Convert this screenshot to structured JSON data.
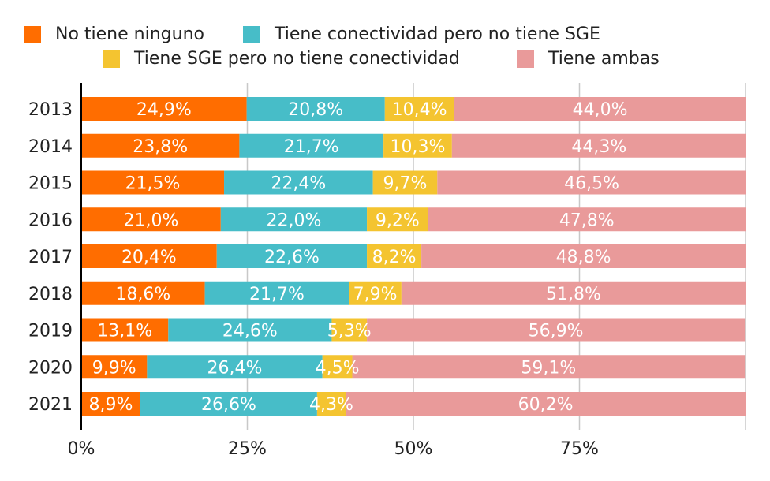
{
  "chart_data": {
    "type": "bar",
    "orientation": "horizontal",
    "stacked": true,
    "categories": [
      "2013",
      "2014",
      "2015",
      "2016",
      "2017",
      "2018",
      "2019",
      "2020",
      "2021"
    ],
    "series": [
      {
        "name": "No tiene ninguno",
        "color": "#FF6D00",
        "values": [
          24.9,
          23.8,
          21.5,
          21.0,
          20.4,
          18.6,
          13.1,
          9.9,
          8.9
        ]
      },
      {
        "name": "Tiene conectividad pero no tiene SGE",
        "color": "#47BDC8",
        "values": [
          20.8,
          21.7,
          22.4,
          22.0,
          22.6,
          21.7,
          24.6,
          26.4,
          26.6
        ]
      },
      {
        "name": "Tiene SGE pero no tiene conectividad",
        "color": "#F4C430",
        "values": [
          10.4,
          10.3,
          9.7,
          9.2,
          8.2,
          7.9,
          5.3,
          4.5,
          4.3
        ]
      },
      {
        "name": "Tiene ambas",
        "color": "#E99A9A",
        "values": [
          44.0,
          44.3,
          46.5,
          47.8,
          48.8,
          51.8,
          56.9,
          59.1,
          60.2
        ]
      }
    ],
    "data_labels": [
      [
        "24,9%",
        "23,8%",
        "21,5%",
        "21,0%",
        "20,4%",
        "18,6%",
        "13,1%",
        "9,9%",
        "8,9%"
      ],
      [
        "20,8%",
        "21,7%",
        "22,4%",
        "22,0%",
        "22,6%",
        "21,7%",
        "24,6%",
        "26,4%",
        "26,6%"
      ],
      [
        "10,4%",
        "10,3%",
        "9,7%",
        "9,2%",
        "8,2%",
        "7,9%",
        "5,3%",
        "4,5%",
        "4,3%"
      ],
      [
        "44,0%",
        "44,3%",
        "46,5%",
        "47,8%",
        "48,8%",
        "51,8%",
        "56,9%",
        "59,1%",
        "60,2%"
      ]
    ],
    "xlim": [
      0,
      100
    ],
    "xticks": [
      0,
      25,
      50,
      75
    ],
    "xtick_labels": [
      "0%",
      "25%",
      "50%",
      "75%"
    ],
    "grid": "vertical",
    "legend_position": "top",
    "title": "",
    "xlabel": "",
    "ylabel": ""
  }
}
